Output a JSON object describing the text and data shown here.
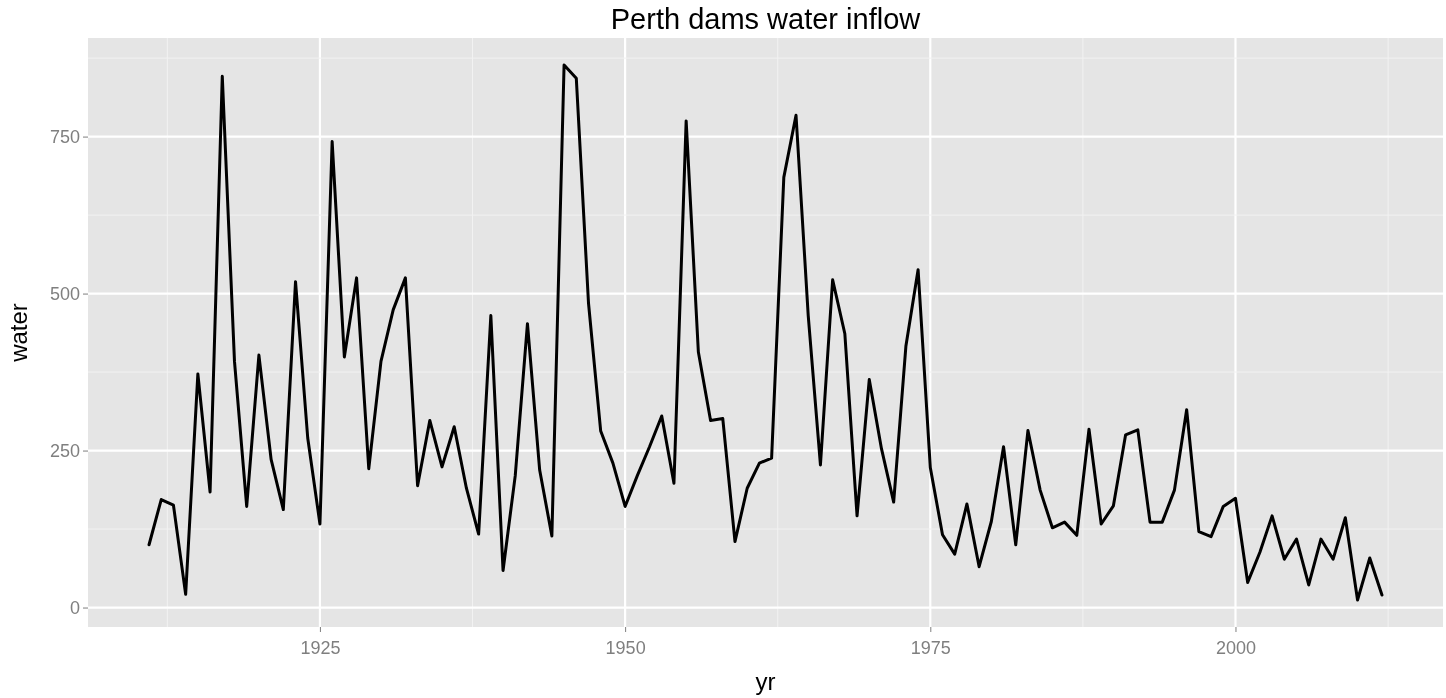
{
  "chart_data": {
    "type": "line",
    "title": "Perth dams water inflow",
    "xlabel": "yr",
    "ylabel": "water",
    "x": [
      1911,
      1912,
      1913,
      1914,
      1915,
      1916,
      1917,
      1918,
      1919,
      1920,
      1921,
      1922,
      1923,
      1924,
      1925,
      1926,
      1927,
      1928,
      1929,
      1930,
      1931,
      1932,
      1933,
      1934,
      1935,
      1936,
      1937,
      1938,
      1939,
      1940,
      1941,
      1942,
      1943,
      1944,
      1945,
      1946,
      1947,
      1948,
      1949,
      1950,
      1951,
      1952,
      1953,
      1954,
      1955,
      1956,
      1957,
      1958,
      1959,
      1960,
      1961,
      1962,
      1963,
      1964,
      1965,
      1966,
      1967,
      1968,
      1969,
      1970,
      1971,
      1972,
      1973,
      1974,
      1975,
      1976,
      1977,
      1978,
      1979,
      1980,
      1981,
      1982,
      1983,
      1984,
      1985,
      1986,
      1987,
      1988,
      1989,
      1990,
      1991,
      1992,
      1993,
      1994,
      1995,
      1996,
      1997,
      1998,
      1999,
      2000,
      2001,
      2002,
      2003,
      2004,
      2005,
      2006,
      2007,
      2008,
      2009,
      2010,
      2011,
      2012
    ],
    "series": [
      {
        "color": "#000000",
        "values": [
          100,
          172,
          163,
          21,
          372,
          184,
          846,
          392,
          161,
          402,
          236,
          156,
          519,
          270,
          133,
          742,
          399,
          525,
          221,
          392,
          474,
          525,
          194,
          298,
          224,
          288,
          190,
          117,
          465,
          59,
          210,
          452,
          219,
          114,
          864,
          843,
          485,
          281,
          230,
          161,
          210,
          256,
          305,
          198,
          775,
          407,
          298,
          301,
          105,
          190,
          230,
          238,
          685,
          784,
          465,
          227,
          522,
          436,
          146,
          363,
          253,
          168,
          416,
          538,
          223,
          116,
          85,
          165,
          65,
          137,
          256,
          100,
          282,
          187,
          127,
          136,
          115,
          284,
          133,
          162,
          275,
          283,
          136,
          136,
          187,
          315,
          121,
          113,
          161,
          174,
          40,
          88,
          146,
          77,
          109,
          36,
          109,
          77,
          143,
          12,
          79,
          20
        ]
      }
    ],
    "xlim": [
      1906,
      2017
    ],
    "xticks": [
      1925,
      1950,
      1975,
      2000
    ],
    "ylim": [
      -31,
      907
    ],
    "yticks": [
      0,
      250,
      500,
      750
    ],
    "grid": true,
    "marker": "none",
    "line_style": "solid"
  }
}
